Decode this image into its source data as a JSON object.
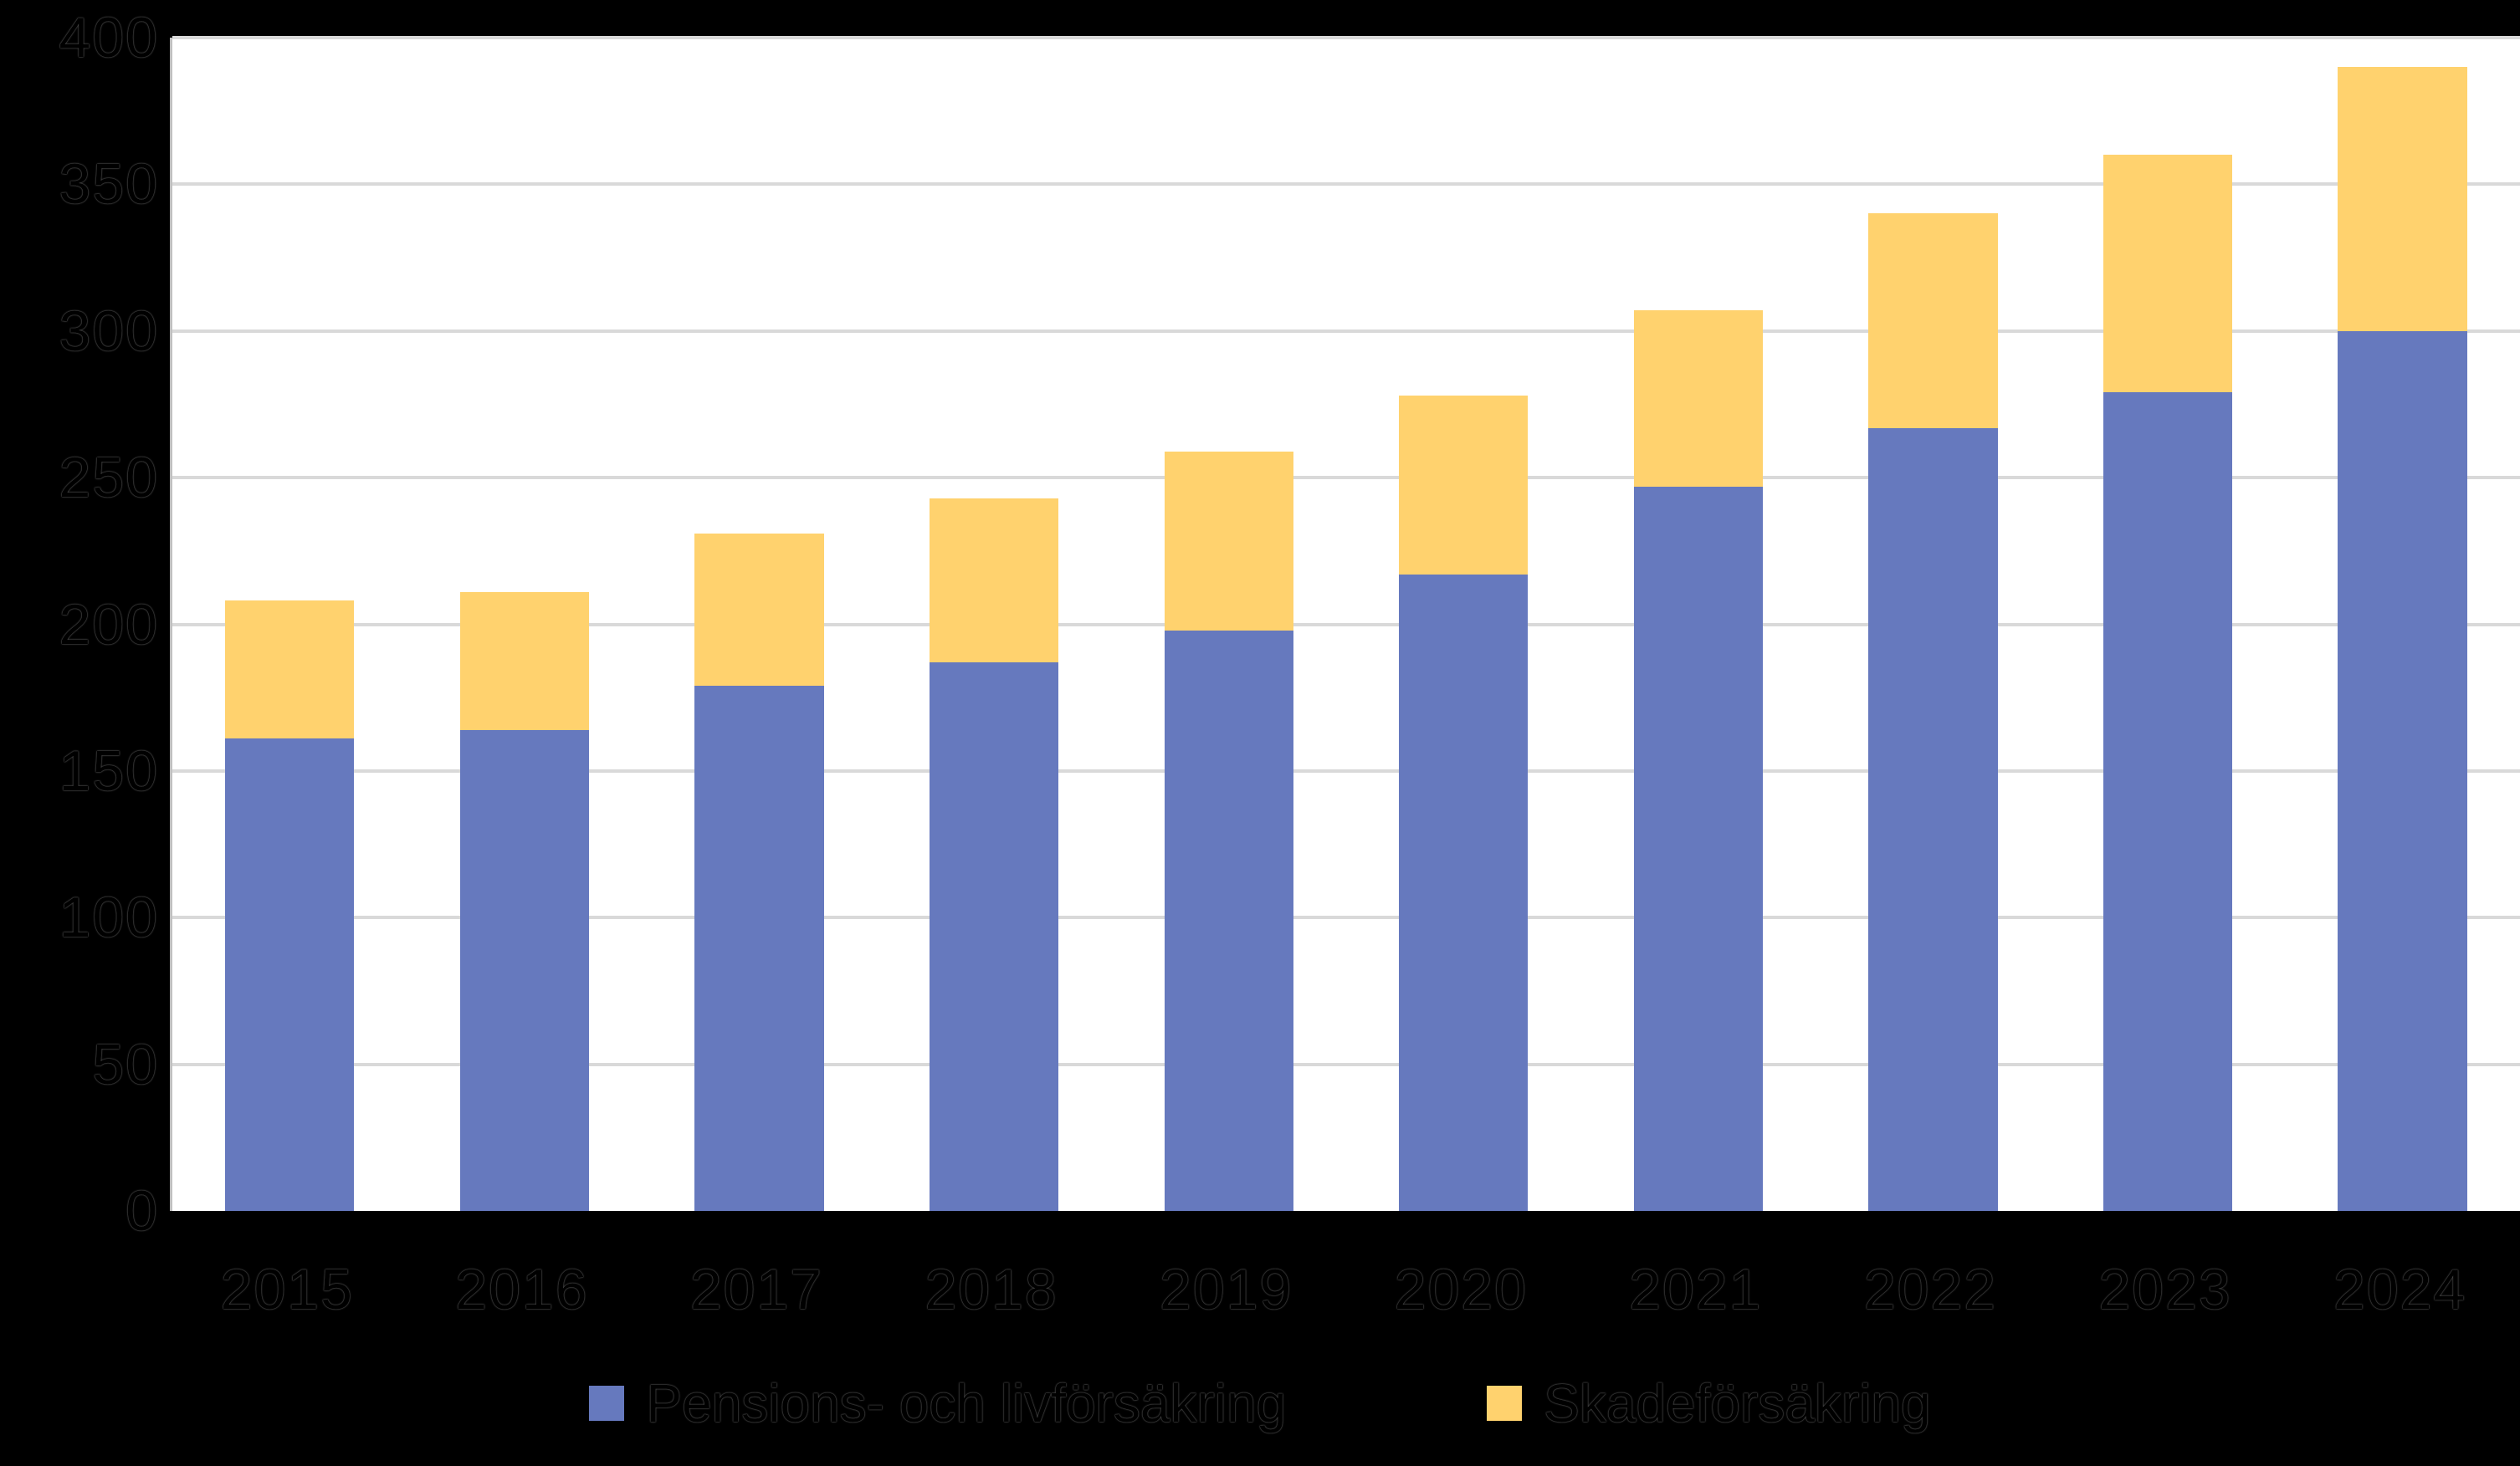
{
  "chart_data": {
    "type": "bar",
    "stacked": true,
    "title": "",
    "xlabel": "",
    "ylabel": "",
    "categories": [
      "2015",
      "2016",
      "2017",
      "2018",
      "2019",
      "2020",
      "2021",
      "2022",
      "2023",
      "2024"
    ],
    "series": [
      {
        "name": "Pensions- och livförsäkring",
        "color": "#6679BE",
        "values": [
          161,
          164,
          179,
          187,
          198,
          217,
          247,
          267,
          279,
          300
        ]
      },
      {
        "name": "Skadeförsäkring",
        "color": "#FFD26E",
        "values": [
          47,
          47,
          52,
          56,
          61,
          61,
          60,
          73,
          81,
          90
        ]
      }
    ],
    "totals": [
      208,
      211,
      231,
      243,
      259,
      278,
      307,
      340,
      360,
      390
    ],
    "ylim": [
      0,
      400
    ],
    "yticks": [
      400,
      350,
      300,
      250,
      200,
      150,
      100,
      50,
      0
    ],
    "grid": "horizontal",
    "legend_position": "bottom",
    "colors": {
      "plot_background": "#FFFFFF",
      "page_background": "#000000",
      "gridline": "#D9D9D9",
      "axis_line": "#BFBFBF",
      "text": "#000000"
    }
  }
}
